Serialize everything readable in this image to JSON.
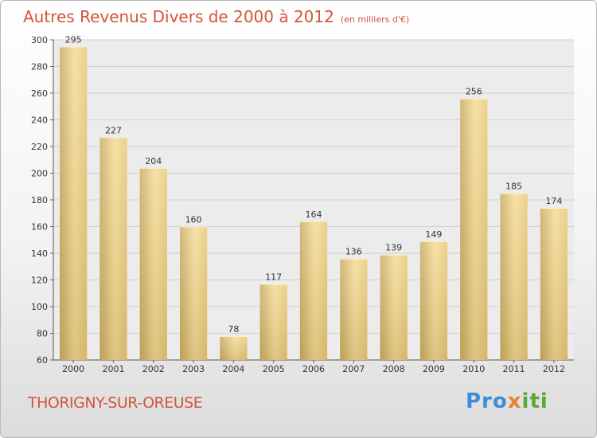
{
  "title": "Autres Revenus Divers de 2000 à 2012",
  "title_unit": "(en milliers d'€)",
  "commune": "THORIGNY-SUR-OREUSE",
  "logo_text": "Proxiti",
  "colors": {
    "accent": "#d4543d",
    "bar_light": "#f6dc98",
    "bar_dark": "#c9ac62",
    "grid": "#cfcfcf"
  },
  "chart_data": {
    "type": "bar",
    "categories": [
      "2000",
      "2001",
      "2002",
      "2003",
      "2004",
      "2005",
      "2006",
      "2007",
      "2008",
      "2009",
      "2010",
      "2011",
      "2012"
    ],
    "values": [
      295,
      227,
      204,
      160,
      78,
      117,
      164,
      136,
      139,
      149,
      256,
      185,
      174
    ],
    "yticks": [
      60,
      80,
      100,
      120,
      140,
      160,
      180,
      200,
      220,
      240,
      260,
      280,
      300
    ],
    "ylim": [
      60,
      300
    ],
    "grid": true
  }
}
